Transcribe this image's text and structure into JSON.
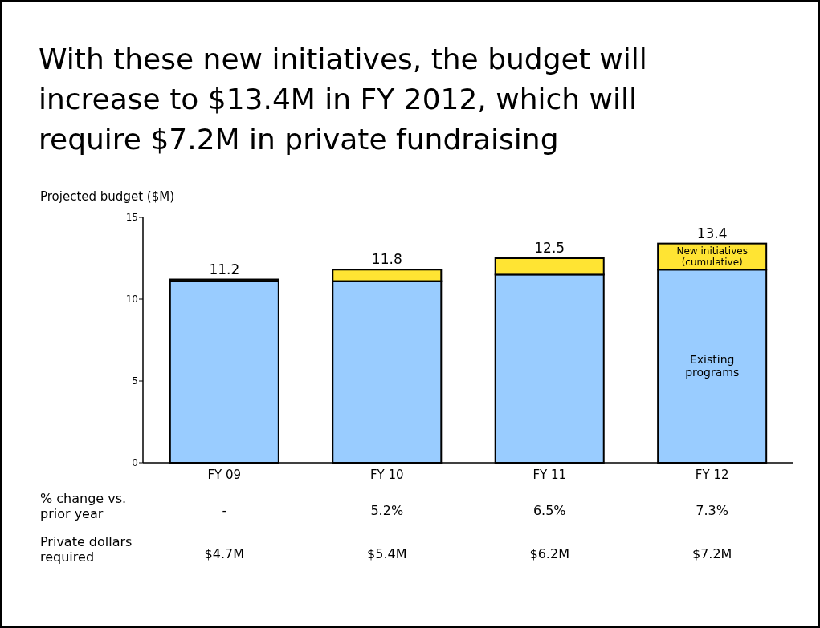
{
  "chart_data": {
    "type": "bar",
    "title": "With these new initiatives, the budget will increase to $13.4M in FY 2012, which will require $7.2M in private fundraising",
    "ylabel": "Projected budget ($M)",
    "categories": [
      "FY 09",
      "FY 10",
      "FY 11",
      "FY 12"
    ],
    "stacked": true,
    "series": [
      {
        "name": "Existing programs",
        "color": "#99ccff",
        "values": [
          11.1,
          11.1,
          11.5,
          11.8
        ]
      },
      {
        "name": "New initiatives (cumulative)",
        "color": "#ffe433",
        "values": [
          0.1,
          0.7,
          1.0,
          1.6
        ]
      }
    ],
    "totals": [
      "11.2",
      "11.8",
      "12.5",
      "13.4"
    ],
    "ylim": [
      0,
      15
    ],
    "yticks": [
      0,
      5,
      10,
      15
    ],
    "annotations": [
      "% change vs.\nprior year",
      "-",
      "5.2%",
      "6.5%",
      "7.3%",
      "Private dollars\nrequired",
      "$4.7M",
      "$5.4M",
      "$6.2M",
      "$7.2M"
    ]
  }
}
